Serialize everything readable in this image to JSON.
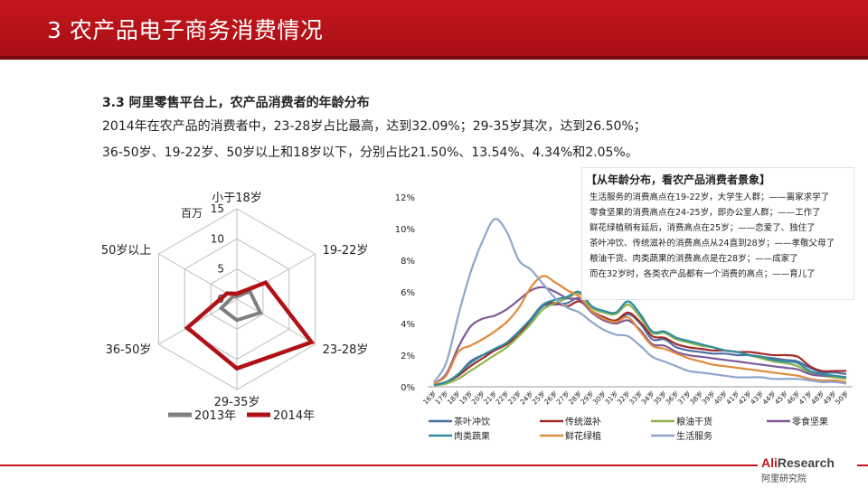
{
  "header": {
    "title": "3 农产品电子商务消费情况"
  },
  "subtitle": "3.3 阿里零售平台上，农产品消费者的年龄分布",
  "summary": {
    "line1": "2014年在农产品的消费者中，23-28岁占比最高，达到32.09%；29-35岁其次，达到26.50%；",
    "line2": "36-50岁、19-22岁、50岁以上和18岁以下，分别占比21.50%、13.54%、4.34%和2.05%。"
  },
  "insight": {
    "title": "【从年龄分布，看农产品消费者景象】",
    "lines": [
      "生活服务的消费高点在19-22岁，大学生人群；——离家求学了",
      "零食坚果的消费高点在24-25岁，即办公室人群；——工作了",
      "鲜花绿植稍有延后，消费高点在25岁；——恋爱了、独住了",
      "茶叶冲饮、传统滋补的消费高点从24直到28岁；——孝敬父母了",
      "粮油干货、肉类蔬果的消费高点是在28岁；——成家了",
      "而在32岁时，各类农产品都有一个消费的高点；——育儿了"
    ]
  },
  "logo": {
    "main_accent": "Ali",
    "main_rest": "Research",
    "sub": "阿里研究院"
  },
  "colors": {
    "brand_red": "#c4161c",
    "s2013": "#7f7f7f",
    "s2014": "#b11116"
  },
  "chart_data": [
    {
      "type": "radar",
      "unit_label": "百万",
      "axes": [
        "小于18岁",
        "19-22岁",
        "23-28岁",
        "29-35岁",
        "36-50岁",
        "50岁以上"
      ],
      "rlim": [
        0,
        15
      ],
      "ticks": [
        "0",
        "5",
        "10",
        "15"
      ],
      "series": [
        {
          "name": "2013年",
          "color": "#7f7f7f",
          "values": [
            0.5,
            2.5,
            4.5,
            3.5,
            3.0,
            0.8
          ]
        },
        {
          "name": "2014年",
          "color": "#b11116",
          "values": [
            0.9,
            5.5,
            14.3,
            11.5,
            9.5,
            1.9
          ]
        }
      ]
    },
    {
      "type": "line",
      "x": [
        "16岁",
        "17岁",
        "18岁",
        "19岁",
        "20岁",
        "21岁",
        "22岁",
        "23岁",
        "24岁",
        "25岁",
        "26岁",
        "27岁",
        "28岁",
        "29岁",
        "30岁",
        "31岁",
        "32岁",
        "33岁",
        "34岁",
        "35岁",
        "36岁",
        "37岁",
        "38岁",
        "39岁",
        "40岁",
        "41岁",
        "42岁",
        "43岁",
        "44岁",
        "45岁",
        "46岁",
        "47岁",
        "48岁",
        "49岁",
        "50岁"
      ],
      "ylim": [
        0,
        12
      ],
      "yticks": [
        "0%",
        "2%",
        "4%",
        "6%",
        "8%",
        "10%",
        "12%"
      ],
      "series": [
        {
          "name": "茶叶冲饮",
          "color": "#4e6fa3",
          "values": [
            0.1,
            0.3,
            0.8,
            1.6,
            2.0,
            2.3,
            2.7,
            3.3,
            4.2,
            5.1,
            5.2,
            5.3,
            5.6,
            4.8,
            4.4,
            4.1,
            4.6,
            4.0,
            3.0,
            3.0,
            2.5,
            2.3,
            2.2,
            2.1,
            2.1,
            2.0,
            2.0,
            1.9,
            1.8,
            1.7,
            1.6,
            1.2,
            0.9,
            0.9,
            0.8
          ]
        },
        {
          "name": "传统滋补",
          "color": "#a52a2a",
          "values": [
            0.1,
            0.3,
            0.7,
            1.3,
            1.8,
            2.3,
            2.7,
            3.3,
            4.3,
            5.2,
            5.3,
            5.1,
            5.4,
            4.8,
            4.4,
            4.2,
            4.7,
            4.1,
            3.2,
            3.1,
            2.7,
            2.5,
            2.4,
            2.3,
            2.3,
            2.2,
            2.2,
            2.1,
            2.0,
            2.0,
            1.9,
            1.3,
            1.0,
            1.0,
            1.0
          ]
        },
        {
          "name": "粮油干货",
          "color": "#8fb24d",
          "values": [
            0.1,
            0.2,
            0.5,
            1.0,
            1.5,
            2.0,
            2.5,
            3.2,
            4.0,
            4.9,
            5.3,
            5.6,
            5.9,
            5.0,
            4.7,
            4.6,
            5.2,
            4.4,
            3.4,
            3.4,
            3.0,
            2.8,
            2.6,
            2.5,
            2.3,
            2.2,
            2.0,
            1.8,
            1.6,
            1.5,
            1.3,
            0.9,
            0.7,
            0.6,
            0.5
          ]
        },
        {
          "name": "零食坚果",
          "color": "#7e5a9b",
          "values": [
            0.2,
            0.8,
            2.5,
            3.8,
            4.3,
            4.5,
            4.9,
            5.5,
            6.1,
            6.3,
            6.0,
            5.6,
            5.5,
            4.7,
            4.2,
            4.0,
            4.2,
            3.6,
            2.7,
            2.6,
            2.2,
            2.0,
            1.9,
            1.8,
            1.7,
            1.6,
            1.5,
            1.4,
            1.3,
            1.2,
            1.1,
            0.8,
            0.7,
            0.7,
            0.6
          ]
        },
        {
          "name": "肉类蔬果",
          "color": "#2f8ca0",
          "values": [
            0.1,
            0.3,
            0.8,
            1.5,
            2.0,
            2.4,
            2.8,
            3.5,
            4.3,
            5.2,
            5.5,
            5.7,
            6.0,
            5.1,
            4.8,
            4.7,
            5.4,
            4.6,
            3.5,
            3.5,
            3.1,
            2.9,
            2.7,
            2.5,
            2.3,
            2.2,
            2.0,
            1.9,
            1.7,
            1.6,
            1.5,
            1.0,
            0.8,
            0.7,
            0.6
          ]
        },
        {
          "name": "鲜花绿植",
          "color": "#e08a3c",
          "values": [
            0.2,
            0.7,
            2.2,
            2.6,
            3.0,
            3.5,
            4.1,
            5.0,
            6.3,
            7.0,
            6.6,
            6.1,
            5.7,
            4.8,
            4.3,
            4.1,
            4.4,
            3.5,
            2.6,
            2.4,
            2.1,
            1.8,
            1.6,
            1.4,
            1.3,
            1.2,
            1.1,
            1.0,
            0.9,
            0.8,
            0.7,
            0.5,
            0.4,
            0.4,
            0.3
          ]
        },
        {
          "name": "生活服务",
          "color": "#8fa6cc",
          "values": [
            0.3,
            1.5,
            4.5,
            7.2,
            9.2,
            10.6,
            9.8,
            8.0,
            7.4,
            6.5,
            5.6,
            5.0,
            4.7,
            4.1,
            3.6,
            3.3,
            3.2,
            2.6,
            1.9,
            1.6,
            1.3,
            1.0,
            0.9,
            0.8,
            0.7,
            0.6,
            0.6,
            0.6,
            0.5,
            0.5,
            0.5,
            0.4,
            0.3,
            0.3,
            0.2
          ]
        }
      ]
    }
  ]
}
